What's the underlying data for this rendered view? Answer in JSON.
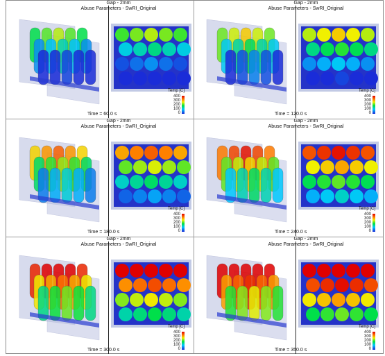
{
  "header": {
    "line1": "Gap - 2mm",
    "line2": "Abuse Parameters - SwRI_Original"
  },
  "legend": {
    "title": "Temp [C]",
    "ticks": [
      "400",
      "300",
      "200",
      "100",
      "0"
    ]
  },
  "panels": [
    {
      "time": "Time = 60.0 s",
      "heat": 0.25
    },
    {
      "time": "Time = 120.0 s",
      "heat": 0.35
    },
    {
      "time": "Time = 180.0 s",
      "heat": 0.5
    },
    {
      "time": "Time = 240.0 s",
      "heat": 0.62
    },
    {
      "time": "Time = 300.0 s",
      "heat": 0.75
    },
    {
      "time": "Time = 350.0 s",
      "heat": 0.85
    }
  ]
}
